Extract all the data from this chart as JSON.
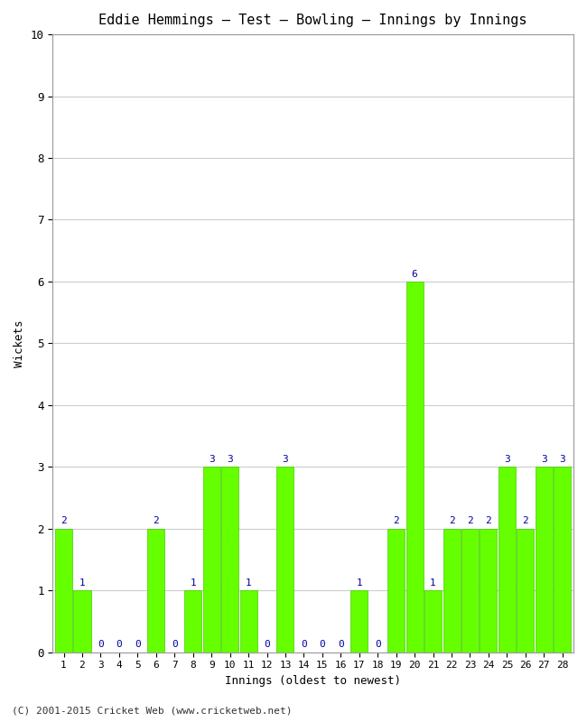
{
  "title": "Eddie Hemmings – Test – Bowling – Innings by Innings",
  "xlabel": "Innings (oldest to newest)",
  "ylabel": "Wickets",
  "x_labels": [
    "1",
    "2",
    "3",
    "4",
    "5",
    "6",
    "7",
    "8",
    "9",
    "10",
    "11",
    "12",
    "13",
    "14",
    "15",
    "16",
    "17",
    "18",
    "19",
    "20",
    "21",
    "22",
    "23",
    "24",
    "25",
    "26",
    "27",
    "28"
  ],
  "values": [
    2,
    1,
    0,
    0,
    0,
    2,
    0,
    1,
    3,
    3,
    1,
    0,
    3,
    0,
    0,
    0,
    1,
    0,
    2,
    6,
    1,
    2,
    2,
    2,
    3,
    2,
    3,
    3
  ],
  "bar_color": "#66ff00",
  "bar_edge_color": "#44cc00",
  "label_color": "#000099",
  "ylim": [
    0,
    10
  ],
  "yticks": [
    0,
    1,
    2,
    3,
    4,
    5,
    6,
    7,
    8,
    9,
    10
  ],
  "background_color": "#ffffff",
  "grid_color": "#cccccc",
  "footer": "(C) 2001-2015 Cricket Web (www.cricketweb.net)",
  "title_fontsize": 11,
  "label_fontsize": 9,
  "tick_fontsize": 8,
  "footer_fontsize": 8,
  "bar_width": 0.93
}
